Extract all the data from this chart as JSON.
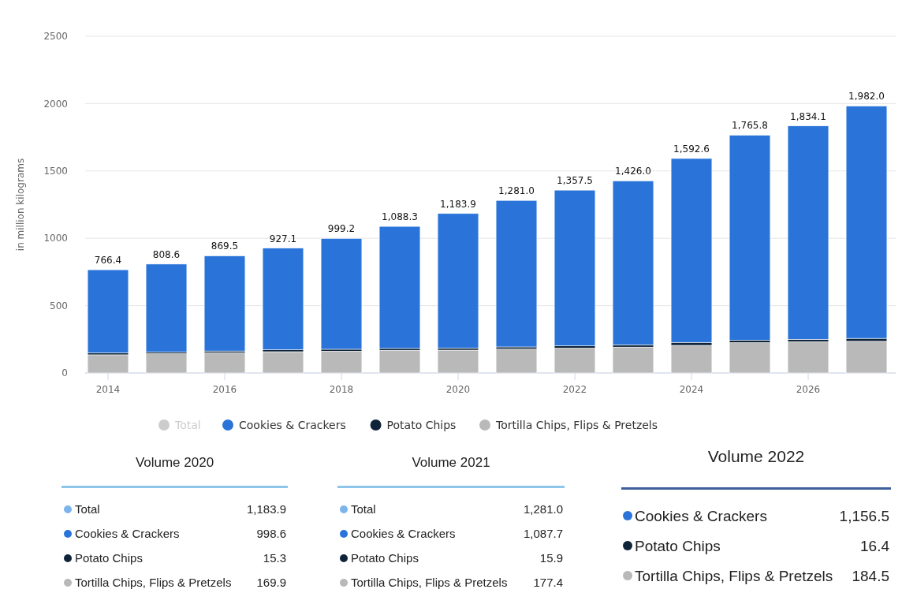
{
  "chart_data": [
    {
      "type": "bar",
      "stacked": true,
      "ylabel": "in million kilograms",
      "categories": [
        "2014",
        null,
        "2016",
        null,
        "2018",
        null,
        "2020",
        null,
        "2022",
        null,
        "2024",
        null,
        "2026",
        null
      ],
      "ylim": [
        0,
        2500
      ],
      "yticks": [
        0,
        500,
        1000,
        1500,
        2000,
        2500
      ],
      "grid": "y",
      "legend": "bottom",
      "series": [
        {
          "name": "Tortilla Chips, Flips & Pretzels",
          "color": "#b9b9b9",
          "values": [
            135,
            143,
            150,
            158,
            162,
            168,
            169.9,
            177.4,
            184.5,
            192,
            205,
            225,
            232,
            235
          ]
        },
        {
          "name": "Potato Chips",
          "color": "#0f2438",
          "values": [
            13,
            13,
            13,
            14,
            14,
            14,
            15.3,
            15.9,
            16.4,
            17,
            22,
            18,
            18,
            22
          ]
        },
        {
          "name": "Cookies & Crackers",
          "color": "#2a74d9",
          "values": [
            618.4,
            652.6,
            706.5,
            755.1,
            823.2,
            906.3,
            998.7,
            1087.7,
            1156.6,
            1217,
            1365.6,
            1522.8,
            1584.1,
            1725
          ]
        },
        {
          "name": "Total",
          "color": "#cccccc",
          "values": [
            null,
            null,
            null,
            null,
            null,
            null,
            null,
            null,
            null,
            null,
            null,
            null,
            null,
            null
          ]
        }
      ],
      "totals": [
        "766.4",
        "808.6",
        "869.5",
        "927.1",
        "999.2",
        "1,088.3",
        "1,183.9",
        "1,281.0",
        "1,357.5",
        "1,426.0",
        "1,592.6",
        "1,765.8",
        "1,834.1",
        "1,982.0"
      ]
    },
    {
      "type": "other",
      "title": "Volume 2020",
      "categories": [
        "Total",
        "Cookies & Crackers",
        "Potato Chips",
        "Tortilla Chips, Flips & Pretzels"
      ],
      "value_labels": [
        "1,183.9",
        "998.6",
        "15.3",
        "169.9"
      ],
      "colors": [
        "#7cb5ec",
        "#2a74d9",
        "#0f2438",
        "#b9b9b9"
      ]
    },
    {
      "type": "other",
      "title": "Volume 2021",
      "categories": [
        "Total",
        "Cookies & Crackers",
        "Potato Chips",
        "Tortilla Chips, Flips & Pretzels"
      ],
      "value_labels": [
        "1,281.0",
        "1,087.7",
        "15.9",
        "177.4"
      ],
      "colors": [
        "#7cb5ec",
        "#2a74d9",
        "#0f2438",
        "#b9b9b9"
      ]
    },
    {
      "type": "other",
      "title": "Volume 2022",
      "categories": [
        "Cookies & Crackers",
        "Potato Chips",
        "Tortilla Chips, Flips & Pretzels"
      ],
      "value_labels": [
        "1,156.5",
        "16.4",
        "184.5"
      ],
      "colors": [
        "#2a74d9",
        "#0f2438",
        "#b9b9b9"
      ]
    }
  ]
}
